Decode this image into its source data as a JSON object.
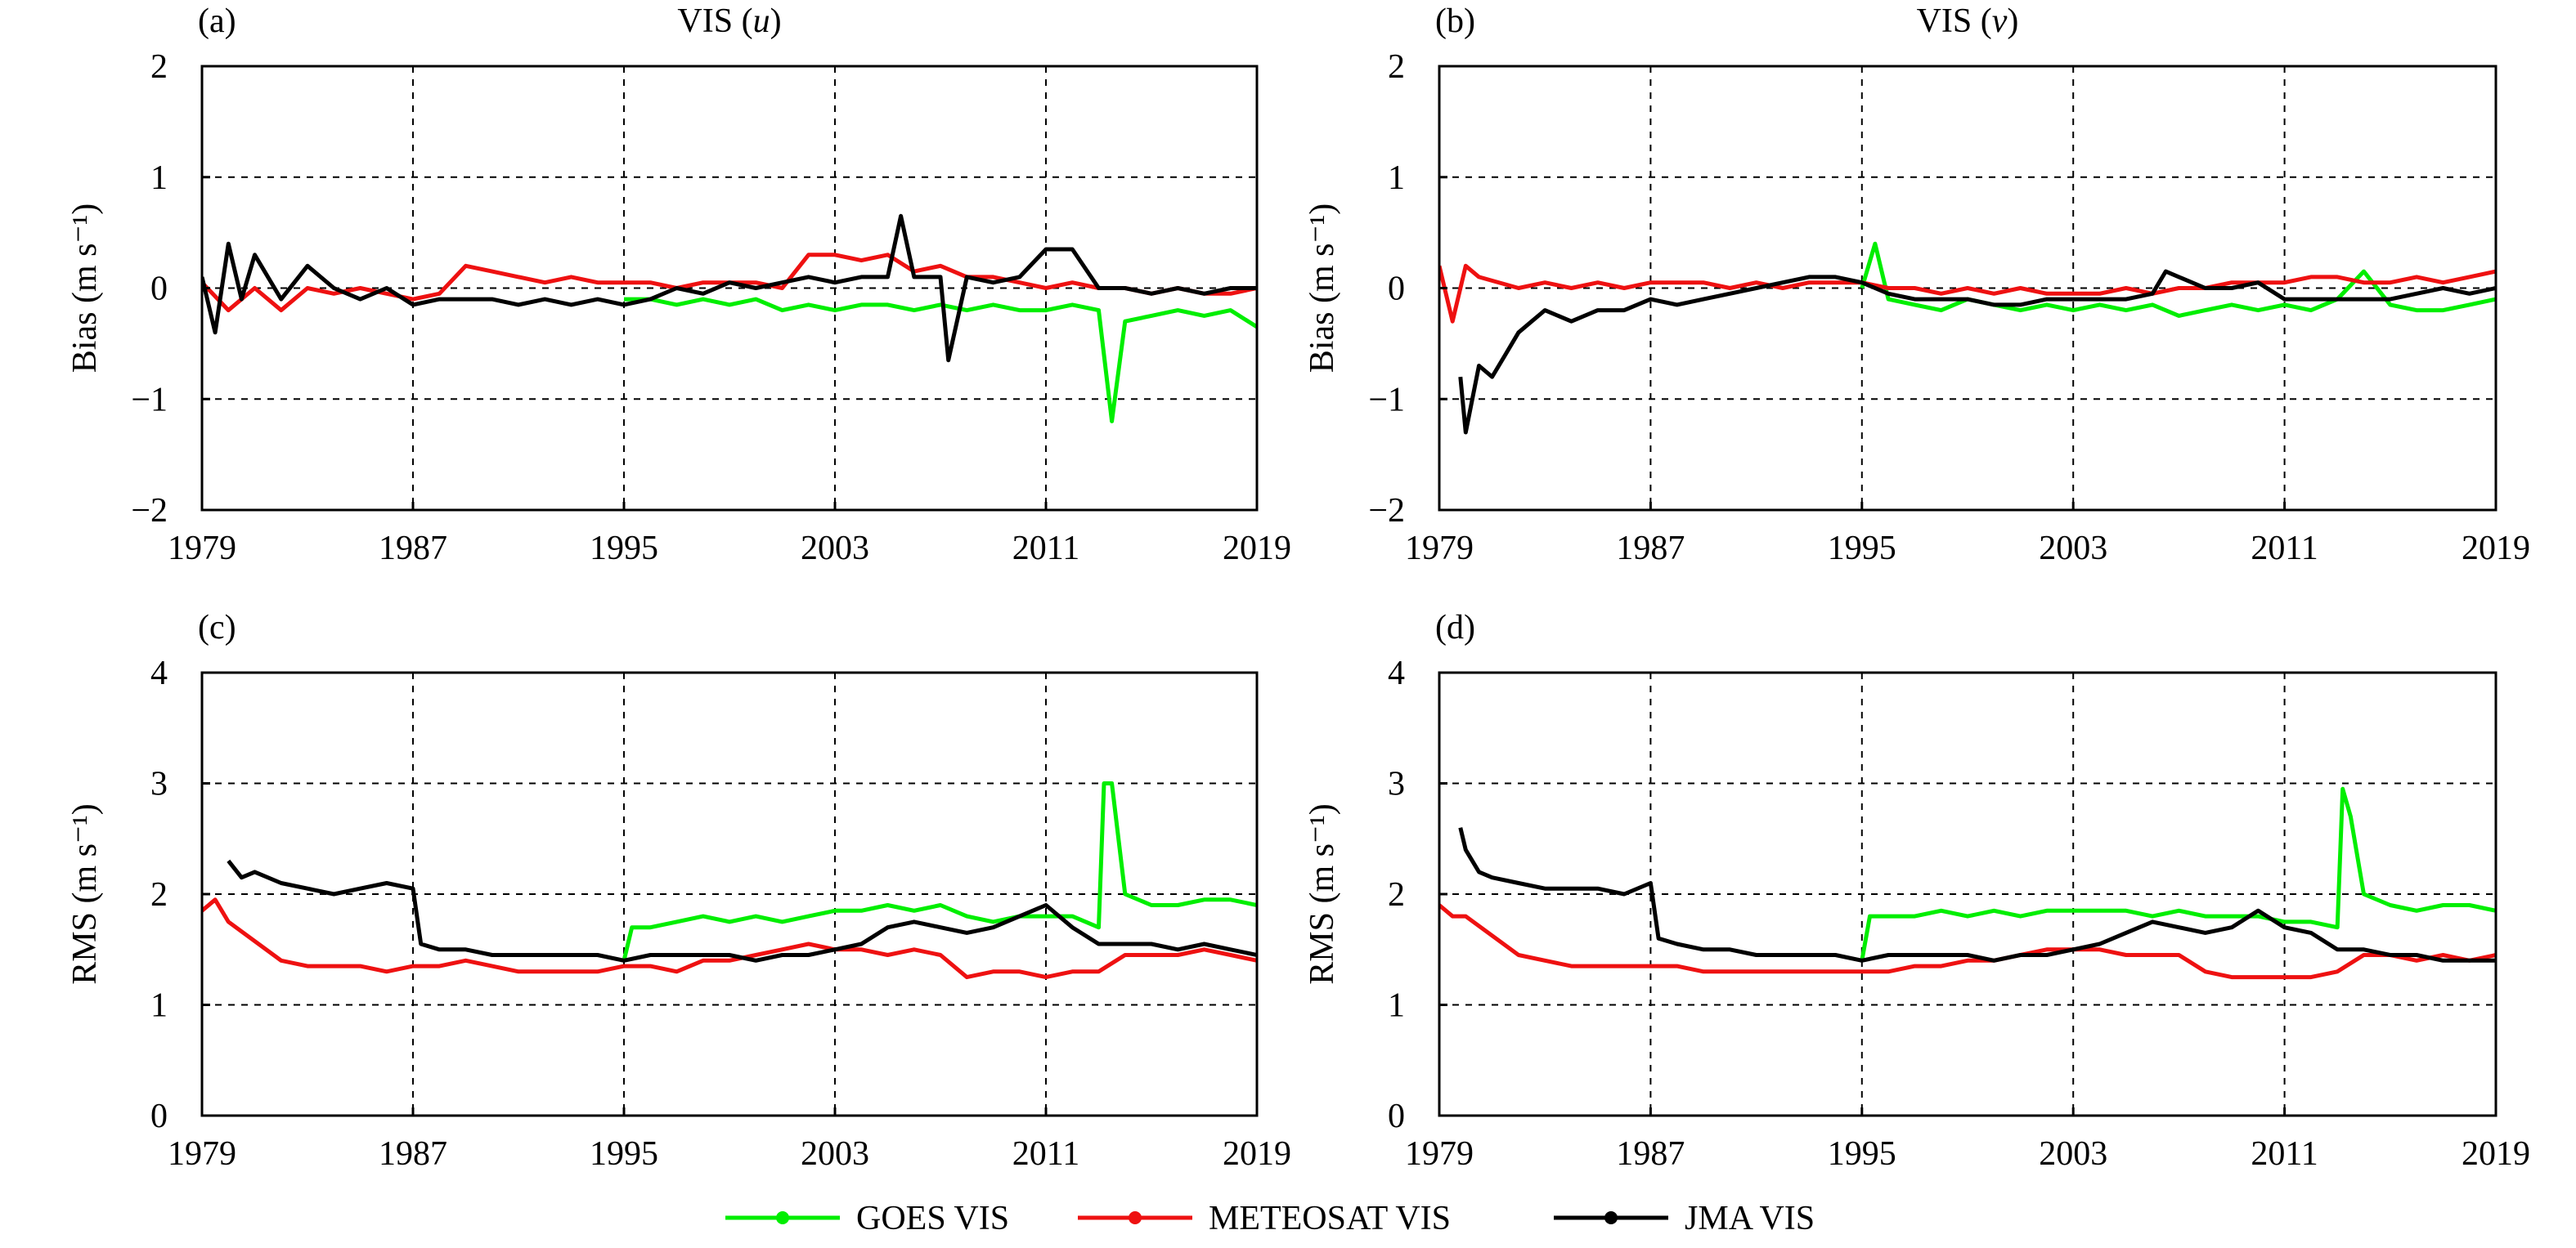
{
  "colors": {
    "GOES VIS": "#00ee00",
    "METEOSAT VIS": "#ee1111",
    "JMA VIS": "#000000",
    "grid": "#000000"
  },
  "legend": {
    "entries": [
      {
        "label": "GOES VIS",
        "color": "#00ee00"
      },
      {
        "label": "METEOSAT VIS",
        "color": "#ee1111"
      },
      {
        "label": "JMA VIS",
        "color": "#000000"
      }
    ],
    "placement": "bottom-center"
  },
  "chart_data": [
    {
      "panel": "(a)",
      "title": "VIS (u)",
      "type": "line",
      "ylabel": "Bias (m s⁻¹)",
      "xlim": [
        1979,
        2019
      ],
      "ylim": [
        -2,
        2
      ],
      "xticks": [
        "1979",
        "1987",
        "1995",
        "2003",
        "2011",
        "2019"
      ],
      "yticks": [
        "−2",
        "−1",
        "0",
        "1",
        "2"
      ],
      "grid": true,
      "series": [
        {
          "name": "GOES VIS",
          "x": [
            1995,
            1996,
            1997,
            1998,
            1999,
            2000,
            2001,
            2002,
            2003,
            2004,
            2005,
            2006,
            2007,
            2008,
            2009,
            2010,
            2011,
            2012,
            2013,
            2013.5,
            2014,
            2015,
            2016,
            2017,
            2018,
            2019
          ],
          "y": [
            -0.1,
            -0.1,
            -0.15,
            -0.1,
            -0.15,
            -0.1,
            -0.2,
            -0.15,
            -0.2,
            -0.15,
            -0.15,
            -0.2,
            -0.15,
            -0.2,
            -0.15,
            -0.2,
            -0.2,
            -0.15,
            -0.2,
            -1.2,
            -0.3,
            -0.25,
            -0.2,
            -0.25,
            -0.2,
            -0.35
          ]
        },
        {
          "name": "METEOSAT VIS",
          "x": [
            1979,
            1980,
            1981,
            1982,
            1983,
            1984,
            1985,
            1986,
            1987,
            1988,
            1989,
            1990,
            1991,
            1992,
            1993,
            1994,
            1995,
            1996,
            1997,
            1998,
            1999,
            2000,
            2001,
            2002,
            2003,
            2004,
            2005,
            2006,
            2007,
            2008,
            2009,
            2010,
            2011,
            2012,
            2013,
            2014,
            2015,
            2016,
            2017,
            2018,
            2019
          ],
          "y": [
            0.05,
            -0.2,
            0.0,
            -0.2,
            0.0,
            -0.05,
            0.0,
            -0.05,
            -0.1,
            -0.05,
            0.2,
            0.15,
            0.1,
            0.05,
            0.1,
            0.05,
            0.05,
            0.05,
            0.0,
            0.05,
            0.05,
            0.05,
            0.0,
            0.3,
            0.3,
            0.25,
            0.3,
            0.15,
            0.2,
            0.1,
            0.1,
            0.05,
            0.0,
            0.05,
            0.0,
            0.0,
            -0.05,
            0.0,
            -0.05,
            -0.05,
            0.0
          ]
        },
        {
          "name": "JMA VIS",
          "x": [
            1979,
            1979.5,
            1980,
            1980.5,
            1981,
            1982,
            1983,
            1984,
            1985,
            1986,
            1987,
            1988,
            1989,
            1990,
            1991,
            1992,
            1993,
            1994,
            1995,
            1996,
            1997,
            1998,
            1999,
            2000,
            2001,
            2002,
            2003,
            2004,
            2005,
            2005.5,
            2006,
            2007,
            2007.3,
            2008,
            2009,
            2010,
            2011,
            2012,
            2013,
            2014,
            2015,
            2016,
            2017,
            2018,
            2019
          ],
          "y": [
            0.1,
            -0.4,
            0.4,
            -0.1,
            0.3,
            -0.1,
            0.2,
            0.0,
            -0.1,
            0.0,
            -0.15,
            -0.1,
            -0.1,
            -0.1,
            -0.15,
            -0.1,
            -0.15,
            -0.1,
            -0.15,
            -0.1,
            0.0,
            -0.05,
            0.05,
            0.0,
            0.05,
            0.1,
            0.05,
            0.1,
            0.1,
            0.65,
            0.1,
            0.1,
            -0.65,
            0.1,
            0.05,
            0.1,
            0.35,
            0.35,
            0.0,
            0.0,
            -0.05,
            0.0,
            -0.05,
            0.0,
            0.0
          ]
        }
      ]
    },
    {
      "panel": "(b)",
      "title": "VIS (v)",
      "type": "line",
      "ylabel": "Bias (m s⁻¹)",
      "xlim": [
        1979,
        2019
      ],
      "ylim": [
        -2,
        2
      ],
      "xticks": [
        "1979",
        "1987",
        "1995",
        "2003",
        "2011",
        "2019"
      ],
      "yticks": [
        "−2",
        "−1",
        "0",
        "1",
        "2"
      ],
      "grid": true,
      "series": [
        {
          "name": "GOES VIS",
          "x": [
            1995,
            1995.5,
            1996,
            1997,
            1998,
            1999,
            2000,
            2001,
            2002,
            2003,
            2004,
            2005,
            2006,
            2007,
            2008,
            2009,
            2010,
            2011,
            2012,
            2013,
            2014,
            2015,
            2016,
            2017,
            2018,
            2019
          ],
          "y": [
            0.0,
            0.4,
            -0.1,
            -0.15,
            -0.2,
            -0.1,
            -0.15,
            -0.2,
            -0.15,
            -0.2,
            -0.15,
            -0.2,
            -0.15,
            -0.25,
            -0.2,
            -0.15,
            -0.2,
            -0.15,
            -0.2,
            -0.1,
            0.15,
            -0.15,
            -0.2,
            -0.2,
            -0.15,
            -0.1
          ]
        },
        {
          "name": "METEOSAT VIS",
          "x": [
            1979,
            1979.5,
            1980,
            1980.5,
            1982,
            1983,
            1984,
            1985,
            1986,
            1987,
            1988,
            1989,
            1990,
            1991,
            1992,
            1993,
            1994,
            1995,
            1996,
            1997,
            1998,
            1999,
            2000,
            2001,
            2002,
            2003,
            2004,
            2005,
            2006,
            2007,
            2008,
            2009,
            2010,
            2011,
            2012,
            2013,
            2014,
            2015,
            2016,
            2017,
            2018,
            2019
          ],
          "y": [
            0.2,
            -0.3,
            0.2,
            0.1,
            0.0,
            0.05,
            0.0,
            0.05,
            0.0,
            0.05,
            0.05,
            0.05,
            0.0,
            0.05,
            0.0,
            0.05,
            0.05,
            0.05,
            0.0,
            0.0,
            -0.05,
            0.0,
            -0.05,
            0.0,
            -0.05,
            -0.05,
            -0.05,
            0.0,
            -0.05,
            0.0,
            0.0,
            0.05,
            0.05,
            0.05,
            0.1,
            0.1,
            0.05,
            0.05,
            0.1,
            0.05,
            0.1,
            0.15
          ]
        },
        {
          "name": "JMA VIS",
          "x": [
            1979.8,
            1980,
            1980.5,
            1981,
            1981.5,
            1982,
            1982.5,
            1983,
            1984,
            1985,
            1986,
            1987,
            1988,
            1989,
            1990,
            1991,
            1992,
            1993,
            1994,
            1995,
            1996,
            1997,
            1998,
            1999,
            2000,
            2001,
            2002,
            2003,
            2004,
            2005,
            2006,
            2006.5,
            2007,
            2008,
            2009,
            2010,
            2011,
            2012,
            2013,
            2014,
            2015,
            2016,
            2017,
            2018,
            2019
          ],
          "y": [
            -0.8,
            -1.3,
            -0.7,
            -0.8,
            -0.6,
            -0.4,
            -0.3,
            -0.2,
            -0.3,
            -0.2,
            -0.2,
            -0.1,
            -0.15,
            -0.1,
            -0.05,
            0.0,
            0.05,
            0.1,
            0.1,
            0.05,
            -0.05,
            -0.1,
            -0.1,
            -0.1,
            -0.15,
            -0.15,
            -0.1,
            -0.1,
            -0.1,
            -0.1,
            -0.05,
            0.15,
            0.1,
            0.0,
            0.0,
            0.05,
            -0.1,
            -0.1,
            -0.1,
            -0.1,
            -0.1,
            -0.05,
            0.0,
            -0.05,
            0.0
          ]
        }
      ]
    },
    {
      "panel": "(c)",
      "title": "",
      "type": "line",
      "ylabel": "RMS (m s⁻¹)",
      "xlim": [
        1979,
        2019
      ],
      "ylim": [
        0,
        4
      ],
      "xticks": [
        "1979",
        "1987",
        "1995",
        "2003",
        "2011",
        "2019"
      ],
      "yticks": [
        "0",
        "1",
        "2",
        "3",
        "4"
      ],
      "grid": true,
      "series": [
        {
          "name": "GOES VIS",
          "x": [
            1995,
            1995.3,
            1996,
            1997,
            1998,
            1999,
            2000,
            2001,
            2002,
            2003,
            2004,
            2005,
            2006,
            2007,
            2008,
            2009,
            2010,
            2011,
            2012,
            2013,
            2013.2,
            2013.5,
            2014,
            2015,
            2016,
            2017,
            2018,
            2019
          ],
          "y": [
            1.4,
            1.7,
            1.7,
            1.75,
            1.8,
            1.75,
            1.8,
            1.75,
            1.8,
            1.85,
            1.85,
            1.9,
            1.85,
            1.9,
            1.8,
            1.75,
            1.8,
            1.8,
            1.8,
            1.7,
            3.0,
            3.0,
            2.0,
            1.9,
            1.9,
            1.95,
            1.95,
            1.9
          ]
        },
        {
          "name": "METEOSAT VIS",
          "x": [
            1979,
            1979.5,
            1980,
            1982,
            1983,
            1984,
            1985,
            1986,
            1987,
            1988,
            1989,
            1990,
            1991,
            1992,
            1993,
            1994,
            1995,
            1996,
            1997,
            1998,
            1999,
            2000,
            2001,
            2002,
            2003,
            2004,
            2005,
            2006,
            2007,
            2008,
            2009,
            2010,
            2011,
            2012,
            2013,
            2014,
            2015,
            2016,
            2017,
            2018,
            2019
          ],
          "y": [
            1.85,
            1.95,
            1.75,
            1.4,
            1.35,
            1.35,
            1.35,
            1.3,
            1.35,
            1.35,
            1.4,
            1.35,
            1.3,
            1.3,
            1.3,
            1.3,
            1.35,
            1.35,
            1.3,
            1.4,
            1.4,
            1.45,
            1.5,
            1.55,
            1.5,
            1.5,
            1.45,
            1.5,
            1.45,
            1.25,
            1.3,
            1.3,
            1.25,
            1.3,
            1.3,
            1.45,
            1.45,
            1.45,
            1.5,
            1.45,
            1.4
          ]
        },
        {
          "name": "JMA VIS",
          "x": [
            1980,
            1980.5,
            1981,
            1982,
            1983,
            1984,
            1985,
            1986,
            1987,
            1987.3,
            1988,
            1989,
            1990,
            1991,
            1992,
            1993,
            1994,
            1995,
            1996,
            1997,
            1998,
            1999,
            2000,
            2001,
            2002,
            2003,
            2004,
            2005,
            2006,
            2007,
            2008,
            2009,
            2010,
            2011,
            2012,
            2013,
            2014,
            2015,
            2016,
            2017,
            2018,
            2019
          ],
          "y": [
            2.3,
            2.15,
            2.2,
            2.1,
            2.05,
            2.0,
            2.05,
            2.1,
            2.05,
            1.55,
            1.5,
            1.5,
            1.45,
            1.45,
            1.45,
            1.45,
            1.45,
            1.4,
            1.45,
            1.45,
            1.45,
            1.45,
            1.4,
            1.45,
            1.45,
            1.5,
            1.55,
            1.7,
            1.75,
            1.7,
            1.65,
            1.7,
            1.8,
            1.9,
            1.7,
            1.55,
            1.55,
            1.55,
            1.5,
            1.55,
            1.5,
            1.45
          ]
        }
      ]
    },
    {
      "panel": "(d)",
      "title": "",
      "type": "line",
      "ylabel": "RMS (m s⁻¹)",
      "xlim": [
        1979,
        2019
      ],
      "ylim": [
        0,
        4
      ],
      "xticks": [
        "1979",
        "1987",
        "1995",
        "2003",
        "2011",
        "2019"
      ],
      "yticks": [
        "0",
        "1",
        "2",
        "3",
        "4"
      ],
      "grid": true,
      "series": [
        {
          "name": "GOES VIS",
          "x": [
            1995,
            1995.3,
            1996,
            1997,
            1998,
            1999,
            2000,
            2001,
            2002,
            2003,
            2004,
            2005,
            2006,
            2007,
            2008,
            2009,
            2010,
            2011,
            2012,
            2013,
            2013.2,
            2013.5,
            2014,
            2015,
            2016,
            2017,
            2018,
            2019
          ],
          "y": [
            1.4,
            1.8,
            1.8,
            1.8,
            1.85,
            1.8,
            1.85,
            1.8,
            1.85,
            1.85,
            1.85,
            1.85,
            1.8,
            1.85,
            1.8,
            1.8,
            1.8,
            1.75,
            1.75,
            1.7,
            2.95,
            2.7,
            2.0,
            1.9,
            1.85,
            1.9,
            1.9,
            1.85
          ]
        },
        {
          "name": "METEOSAT VIS",
          "x": [
            1979,
            1979.5,
            1980,
            1982,
            1983,
            1984,
            1985,
            1986,
            1987,
            1988,
            1989,
            1990,
            1991,
            1992,
            1993,
            1994,
            1995,
            1996,
            1997,
            1998,
            1999,
            2000,
            2001,
            2002,
            2003,
            2004,
            2005,
            2006,
            2007,
            2008,
            2009,
            2010,
            2011,
            2012,
            2013,
            2014,
            2015,
            2016,
            2017,
            2018,
            2019
          ],
          "y": [
            1.9,
            1.8,
            1.8,
            1.45,
            1.4,
            1.35,
            1.35,
            1.35,
            1.35,
            1.35,
            1.3,
            1.3,
            1.3,
            1.3,
            1.3,
            1.3,
            1.3,
            1.3,
            1.35,
            1.35,
            1.4,
            1.4,
            1.45,
            1.5,
            1.5,
            1.5,
            1.45,
            1.45,
            1.45,
            1.3,
            1.25,
            1.25,
            1.25,
            1.25,
            1.3,
            1.45,
            1.45,
            1.4,
            1.45,
            1.4,
            1.45
          ]
        },
        {
          "name": "JMA VIS",
          "x": [
            1979.8,
            1980,
            1980.5,
            1981,
            1982,
            1983,
            1984,
            1985,
            1986,
            1987,
            1987.3,
            1988,
            1989,
            1990,
            1991,
            1992,
            1993,
            1994,
            1995,
            1996,
            1997,
            1998,
            1999,
            2000,
            2001,
            2002,
            2003,
            2004,
            2005,
            2006,
            2007,
            2008,
            2009,
            2010,
            2011,
            2012,
            2013,
            2014,
            2015,
            2016,
            2017,
            2018,
            2019
          ],
          "y": [
            2.6,
            2.4,
            2.2,
            2.15,
            2.1,
            2.05,
            2.05,
            2.05,
            2.0,
            2.1,
            1.6,
            1.55,
            1.5,
            1.5,
            1.45,
            1.45,
            1.45,
            1.45,
            1.4,
            1.45,
            1.45,
            1.45,
            1.45,
            1.4,
            1.45,
            1.45,
            1.5,
            1.55,
            1.65,
            1.75,
            1.7,
            1.65,
            1.7,
            1.85,
            1.7,
            1.65,
            1.5,
            1.5,
            1.45,
            1.45,
            1.4,
            1.4,
            1.4
          ]
        }
      ]
    }
  ]
}
